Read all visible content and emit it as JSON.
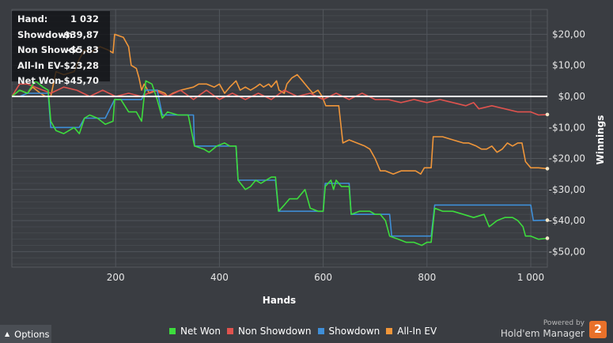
{
  "info": {
    "rows": [
      {
        "label": "Hand:",
        "value": "1 032"
      },
      {
        "label": "Showdown",
        "value": "-$39,87"
      },
      {
        "label": "Non Showdown",
        "value": "-$5,83"
      },
      {
        "label": "All-In EV",
        "value": "-$23,28"
      },
      {
        "label": "Net Won",
        "value": "-$45,70"
      }
    ]
  },
  "options_label": "Options",
  "brand": {
    "powered_by": "Powered by",
    "name": "Hold'em Manager",
    "badge": "2"
  },
  "colors": {
    "background": "#3a3d42",
    "grid": "#4e5258",
    "zero_line": "#ffffff",
    "net_won": "#3ddc3d",
    "non_showdown": "#e0534e",
    "showdown": "#3f8fd8",
    "all_in_ev": "#f0963a"
  },
  "chart_data": {
    "type": "line",
    "xlabel": "Hands",
    "ylabel": "Winnings",
    "xlim": [
      0,
      1032
    ],
    "ylim": [
      -55,
      28
    ],
    "x_ticks": [
      200,
      400,
      600,
      800,
      1000
    ],
    "x_tick_labels": [
      "200",
      "400",
      "600",
      "800",
      "1 000"
    ],
    "y_ticks": [
      20,
      10,
      0,
      -10,
      -20,
      -30,
      -40,
      -50
    ],
    "y_tick_labels": [
      "$20,00",
      "$10,00",
      "$0,00",
      "-$10,00",
      "-$20,00",
      "-$30,00",
      "-$40,00",
      "-$50,00"
    ],
    "legend_position": "bottom",
    "series": [
      {
        "name": "Net Won",
        "color_key": "net_won",
        "points": [
          [
            0,
            0
          ],
          [
            15,
            2
          ],
          [
            30,
            1
          ],
          [
            45,
            5
          ],
          [
            60,
            3
          ],
          [
            70,
            2
          ],
          [
            75,
            -8
          ],
          [
            85,
            -11
          ],
          [
            100,
            -12
          ],
          [
            120,
            -10
          ],
          [
            130,
            -12
          ],
          [
            140,
            -7
          ],
          [
            150,
            -6
          ],
          [
            165,
            -7
          ],
          [
            180,
            -9
          ],
          [
            195,
            -8
          ],
          [
            198,
            -1
          ],
          [
            210,
            -1
          ],
          [
            225,
            -5
          ],
          [
            240,
            -5
          ],
          [
            250,
            -8
          ],
          [
            258,
            5
          ],
          [
            270,
            4
          ],
          [
            280,
            -1
          ],
          [
            290,
            -7
          ],
          [
            300,
            -5
          ],
          [
            320,
            -6
          ],
          [
            340,
            -6
          ],
          [
            352,
            -16
          ],
          [
            370,
            -17
          ],
          [
            380,
            -18
          ],
          [
            395,
            -16
          ],
          [
            410,
            -15
          ],
          [
            420,
            -16
          ],
          [
            432,
            -16
          ],
          [
            436,
            -27
          ],
          [
            450,
            -30
          ],
          [
            460,
            -29
          ],
          [
            470,
            -27
          ],
          [
            480,
            -28
          ],
          [
            490,
            -27
          ],
          [
            500,
            -26
          ],
          [
            508,
            -26
          ],
          [
            514,
            -37
          ],
          [
            525,
            -35
          ],
          [
            535,
            -33
          ],
          [
            550,
            -33
          ],
          [
            560,
            -31
          ],
          [
            565,
            -30
          ],
          [
            575,
            -36
          ],
          [
            590,
            -37
          ],
          [
            600,
            -37
          ],
          [
            604,
            -29
          ],
          [
            615,
            -27
          ],
          [
            620,
            -30
          ],
          [
            625,
            -27
          ],
          [
            635,
            -29
          ],
          [
            650,
            -29
          ],
          [
            654,
            -38
          ],
          [
            670,
            -37
          ],
          [
            690,
            -37
          ],
          [
            700,
            -38
          ],
          [
            710,
            -38
          ],
          [
            720,
            -40
          ],
          [
            728,
            -45
          ],
          [
            745,
            -46
          ],
          [
            760,
            -47
          ],
          [
            775,
            -47
          ],
          [
            790,
            -48
          ],
          [
            800,
            -47
          ],
          [
            808,
            -47
          ],
          [
            815,
            -36
          ],
          [
            830,
            -37
          ],
          [
            850,
            -37
          ],
          [
            870,
            -38
          ],
          [
            890,
            -39
          ],
          [
            910,
            -38
          ],
          [
            920,
            -42
          ],
          [
            935,
            -40
          ],
          [
            950,
            -39
          ],
          [
            965,
            -39
          ],
          [
            975,
            -40
          ],
          [
            985,
            -42
          ],
          [
            990,
            -45
          ],
          [
            1000,
            -45
          ],
          [
            1015,
            -46
          ],
          [
            1032,
            -45.7
          ]
        ]
      },
      {
        "name": "Non Showdown",
        "color_key": "non_showdown",
        "points": [
          [
            0,
            0
          ],
          [
            15,
            4
          ],
          [
            30,
            4
          ],
          [
            45,
            3
          ],
          [
            60,
            2
          ],
          [
            75,
            1
          ],
          [
            100,
            3
          ],
          [
            125,
            2
          ],
          [
            150,
            0
          ],
          [
            175,
            2
          ],
          [
            200,
            0
          ],
          [
            225,
            1
          ],
          [
            250,
            0
          ],
          [
            275,
            2
          ],
          [
            300,
            0
          ],
          [
            325,
            2
          ],
          [
            350,
            -1
          ],
          [
            375,
            2
          ],
          [
            400,
            -1
          ],
          [
            425,
            1
          ],
          [
            450,
            -1
          ],
          [
            475,
            1
          ],
          [
            500,
            -1
          ],
          [
            525,
            2
          ],
          [
            550,
            0
          ],
          [
            575,
            1
          ],
          [
            600,
            -1
          ],
          [
            625,
            1
          ],
          [
            650,
            -1
          ],
          [
            675,
            1
          ],
          [
            700,
            -1
          ],
          [
            725,
            -1
          ],
          [
            750,
            -2
          ],
          [
            775,
            -1
          ],
          [
            800,
            -2
          ],
          [
            825,
            -1
          ],
          [
            850,
            -2
          ],
          [
            875,
            -3
          ],
          [
            890,
            -2
          ],
          [
            900,
            -4
          ],
          [
            925,
            -3
          ],
          [
            950,
            -4
          ],
          [
            975,
            -5
          ],
          [
            1000,
            -5
          ],
          [
            1015,
            -6
          ],
          [
            1032,
            -5.83
          ]
        ]
      },
      {
        "name": "Showdown",
        "color_key": "showdown",
        "points": [
          [
            0,
            0
          ],
          [
            15,
            0
          ],
          [
            30,
            1
          ],
          [
            70,
            1
          ],
          [
            75,
            -10
          ],
          [
            130,
            -10
          ],
          [
            140,
            -7
          ],
          [
            180,
            -7
          ],
          [
            198,
            -1
          ],
          [
            250,
            -1
          ],
          [
            258,
            2
          ],
          [
            280,
            2
          ],
          [
            290,
            -6
          ],
          [
            350,
            -6
          ],
          [
            352,
            -16
          ],
          [
            432,
            -16
          ],
          [
            436,
            -27
          ],
          [
            508,
            -27
          ],
          [
            514,
            -37
          ],
          [
            600,
            -37
          ],
          [
            604,
            -28
          ],
          [
            650,
            -28
          ],
          [
            654,
            -38
          ],
          [
            728,
            -38
          ],
          [
            732,
            -45
          ],
          [
            808,
            -45
          ],
          [
            815,
            -35
          ],
          [
            1000,
            -35
          ],
          [
            1005,
            -40
          ],
          [
            1032,
            -39.87
          ]
        ]
      },
      {
        "name": "All-In EV",
        "color_key": "all_in_ev",
        "points": [
          [
            0,
            0
          ],
          [
            15,
            2
          ],
          [
            30,
            1
          ],
          [
            40,
            3
          ],
          [
            55,
            1
          ],
          [
            65,
            0
          ],
          [
            75,
            0
          ],
          [
            85,
            8
          ],
          [
            100,
            7
          ],
          [
            120,
            8
          ],
          [
            130,
            12
          ],
          [
            140,
            15
          ],
          [
            150,
            14
          ],
          [
            170,
            16
          ],
          [
            185,
            15
          ],
          [
            195,
            14
          ],
          [
            198,
            20
          ],
          [
            215,
            19
          ],
          [
            225,
            16
          ],
          [
            230,
            10
          ],
          [
            240,
            9
          ],
          [
            245,
            6
          ],
          [
            250,
            2
          ],
          [
            255,
            4
          ],
          [
            265,
            1
          ],
          [
            280,
            2
          ],
          [
            295,
            1
          ],
          [
            300,
            0
          ],
          [
            310,
            1
          ],
          [
            325,
            2
          ],
          [
            350,
            3
          ],
          [
            360,
            4
          ],
          [
            375,
            4
          ],
          [
            390,
            3
          ],
          [
            400,
            4
          ],
          [
            410,
            1
          ],
          [
            420,
            3
          ],
          [
            432,
            5
          ],
          [
            440,
            2
          ],
          [
            450,
            3
          ],
          [
            460,
            2
          ],
          [
            470,
            3
          ],
          [
            478,
            4
          ],
          [
            485,
            3
          ],
          [
            495,
            4
          ],
          [
            500,
            3
          ],
          [
            510,
            5
          ],
          [
            515,
            2
          ],
          [
            525,
            1
          ],
          [
            530,
            4
          ],
          [
            540,
            6
          ],
          [
            550,
            7
          ],
          [
            560,
            5
          ],
          [
            570,
            3
          ],
          [
            580,
            1
          ],
          [
            590,
            2
          ],
          [
            598,
            0
          ],
          [
            605,
            -3
          ],
          [
            610,
            -3
          ],
          [
            620,
            -3
          ],
          [
            630,
            -3
          ],
          [
            638,
            -15
          ],
          [
            650,
            -14
          ],
          [
            665,
            -15
          ],
          [
            680,
            -16
          ],
          [
            690,
            -17
          ],
          [
            700,
            -20
          ],
          [
            710,
            -24
          ],
          [
            720,
            -24
          ],
          [
            735,
            -25
          ],
          [
            750,
            -24
          ],
          [
            765,
            -24
          ],
          [
            778,
            -24
          ],
          [
            788,
            -25
          ],
          [
            795,
            -23
          ],
          [
            808,
            -23
          ],
          [
            812,
            -13
          ],
          [
            830,
            -13
          ],
          [
            850,
            -14
          ],
          [
            870,
            -15
          ],
          [
            880,
            -15
          ],
          [
            895,
            -16
          ],
          [
            905,
            -17
          ],
          [
            915,
            -17
          ],
          [
            925,
            -16
          ],
          [
            935,
            -18
          ],
          [
            945,
            -17
          ],
          [
            955,
            -15
          ],
          [
            965,
            -16
          ],
          [
            975,
            -15
          ],
          [
            983,
            -15
          ],
          [
            990,
            -21
          ],
          [
            1000,
            -23
          ],
          [
            1015,
            -23
          ],
          [
            1032,
            -23.28
          ]
        ]
      }
    ]
  }
}
